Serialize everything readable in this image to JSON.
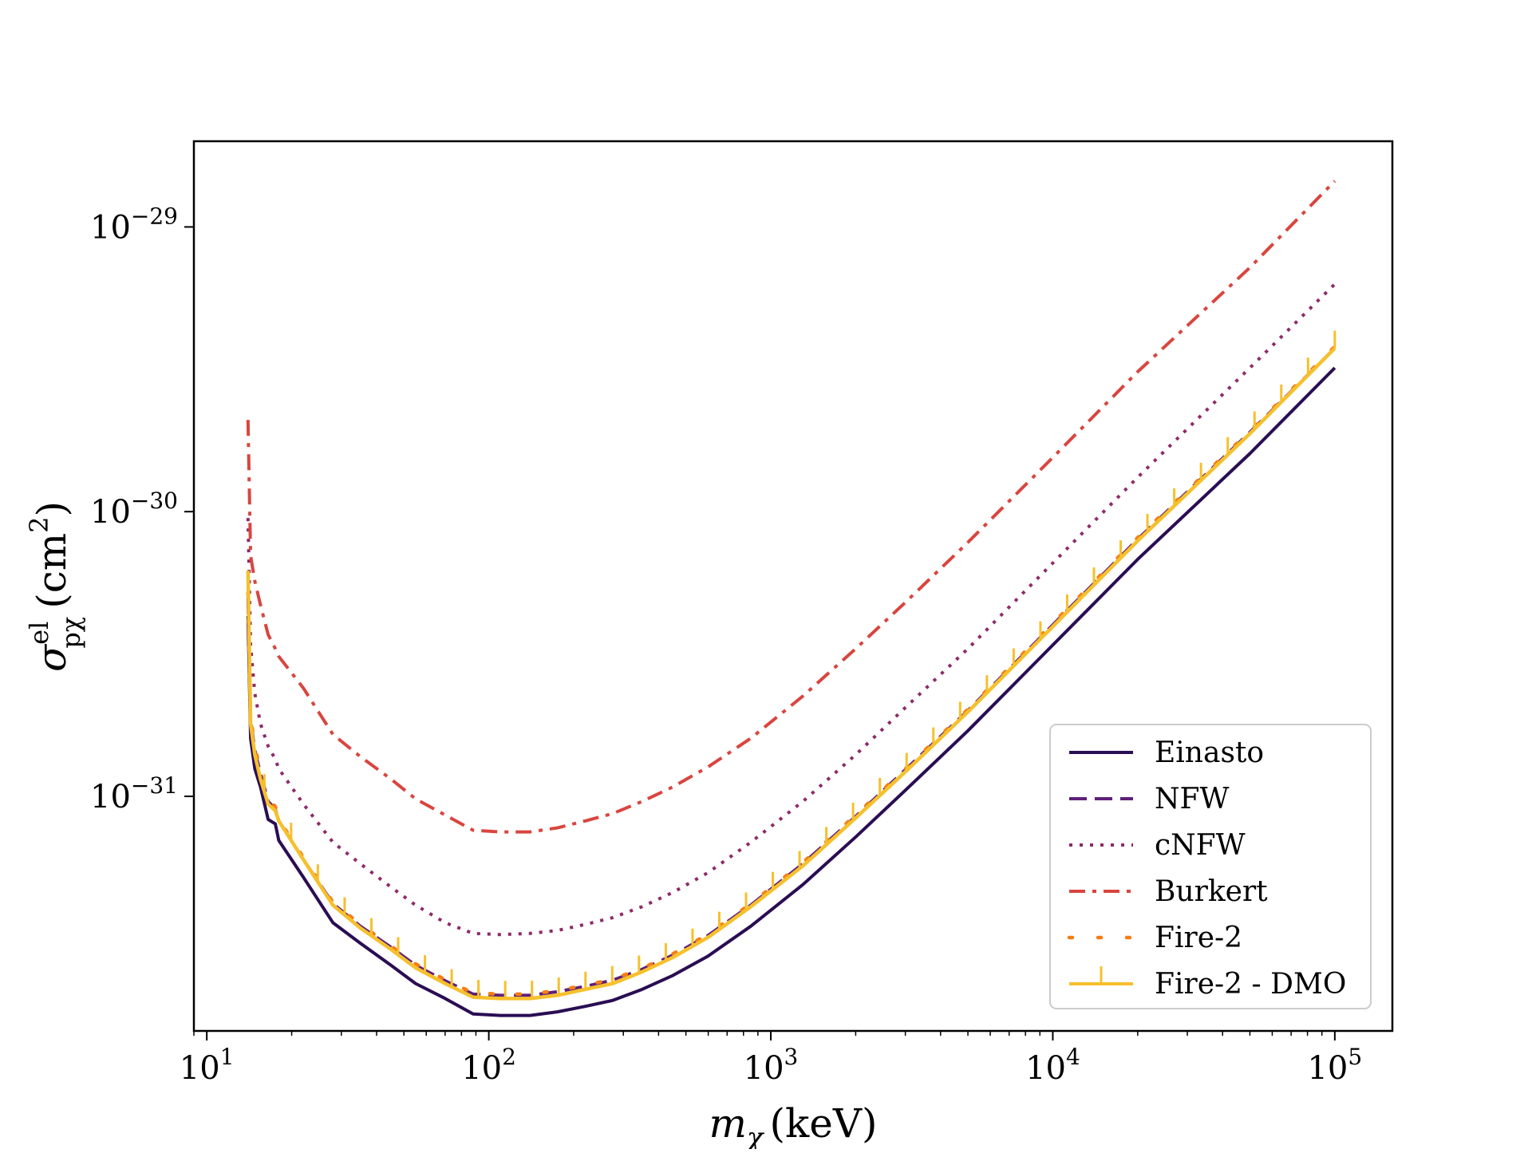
{
  "chart_data": {
    "type": "line",
    "title": "",
    "xlabel": "m",
    "xlabel_sub": "χ",
    "xlabel_unit": "(keV)",
    "ylabel": "σ",
    "ylabel_sup": "el",
    "ylabel_sub": "pχ",
    "ylabel_unit_open": "(cm",
    "ylabel_unit_exp": "2",
    "ylabel_unit_close": ")",
    "x_scale": "log",
    "y_scale": "log",
    "xlim": [
      9,
      160000
    ],
    "ylim": [
      1.5e-32,
      2e-29
    ],
    "grid": false,
    "legend_position": "lower right",
    "x_ticks": [
      {
        "value": 10,
        "base": "10",
        "exp": "1"
      },
      {
        "value": 100,
        "base": "10",
        "exp": "2"
      },
      {
        "value": 1000,
        "base": "10",
        "exp": "3"
      },
      {
        "value": 10000,
        "base": "10",
        "exp": "4"
      },
      {
        "value": 100000,
        "base": "10",
        "exp": "5"
      }
    ],
    "y_ticks": [
      {
        "value": 1e-31,
        "base": "10",
        "exp": "−31"
      },
      {
        "value": 1e-30,
        "base": "10",
        "exp": "−30"
      },
      {
        "value": 1e-29,
        "base": "10",
        "exp": "−29"
      }
    ],
    "series": [
      {
        "name": "Einasto",
        "color": "#2a0d53",
        "style": "solid",
        "x": [
          14,
          14.3,
          14.8,
          15.5,
          16.5,
          17.5,
          18,
          22,
          28,
          35,
          45,
          55,
          70,
          88,
          110,
          140,
          175,
          220,
          275,
          350,
          450,
          600,
          850,
          1300,
          2000,
          3000,
          5000,
          10000,
          20000,
          50000,
          100000
        ],
        "y": [
          4.3e-31,
          1.6e-31,
          1.25e-31,
          1.08e-31,
          8.3e-32,
          8e-32,
          7e-32,
          5.2e-32,
          3.6e-32,
          3.05e-32,
          2.55e-32,
          2.2e-32,
          1.95e-32,
          1.72e-32,
          1.7e-32,
          1.7e-32,
          1.75e-32,
          1.83e-32,
          1.92e-32,
          2.1e-32,
          2.35e-32,
          2.75e-32,
          3.5e-32,
          4.9e-32,
          7.2e-32,
          1.05e-31,
          1.7e-31,
          3.4e-31,
          6.8e-31,
          1.6e-30,
          3.2e-30
        ]
      },
      {
        "name": "NFW",
        "color": "#5e1f79",
        "style": "dashed",
        "x": [
          14,
          14.3,
          14.8,
          15.5,
          16.5,
          17.5,
          18,
          22,
          28,
          35,
          45,
          55,
          70,
          88,
          110,
          140,
          175,
          220,
          275,
          350,
          450,
          600,
          850,
          1300,
          2000,
          3000,
          5000,
          10000,
          20000,
          50000,
          100000
        ],
        "y": [
          5e-31,
          1.85e-31,
          1.45e-31,
          1.2e-31,
          9.6e-32,
          9e-32,
          8.2e-32,
          6e-32,
          4.2e-32,
          3.5e-32,
          2.95e-32,
          2.55e-32,
          2.25e-32,
          2.02e-32,
          2e-32,
          2e-32,
          2.06e-32,
          2.15e-32,
          2.26e-32,
          2.47e-32,
          2.77e-32,
          3.25e-32,
          4.15e-32,
          5.8e-32,
          8.5e-32,
          1.24e-31,
          2e-31,
          4e-31,
          8e-31,
          1.9e-30,
          3.75e-30
        ]
      },
      {
        "name": "cNFW",
        "color": "#8d2a68",
        "style": "dotted",
        "x": [
          14,
          14.3,
          14.8,
          15.5,
          16.5,
          17.5,
          18,
          22,
          28,
          35,
          45,
          55,
          70,
          88,
          110,
          140,
          175,
          220,
          275,
          350,
          450,
          600,
          850,
          1300,
          2000,
          3000,
          5000,
          10000,
          20000,
          50000,
          100000
        ],
        "y": [
          9.5e-31,
          3.4e-31,
          2.3e-31,
          1.8e-31,
          1.5e-31,
          1.35e-31,
          1.25e-31,
          9.4e-32,
          6.9e-32,
          5.8e-32,
          4.8e-32,
          4.15e-32,
          3.6e-32,
          3.3e-32,
          3.27e-32,
          3.3e-32,
          3.38e-32,
          3.55e-32,
          3.75e-32,
          4.1e-32,
          4.6e-32,
          5.4e-32,
          6.9e-32,
          9.6e-32,
          1.4e-31,
          2.05e-31,
          3.3e-31,
          6.6e-31,
          1.32e-30,
          3.2e-30,
          6.3e-30
        ]
      },
      {
        "name": "Burkert",
        "color": "#d9453f",
        "style": "dashdot",
        "x": [
          14,
          14.3,
          14.8,
          15.5,
          16.5,
          17.5,
          18,
          22,
          28,
          35,
          45,
          55,
          70,
          88,
          110,
          140,
          175,
          220,
          275,
          350,
          450,
          600,
          850,
          1300,
          2000,
          3000,
          5000,
          10000,
          20000,
          50000,
          100000
        ],
        "y": [
          2.1e-30,
          7e-31,
          5.7e-31,
          4.7e-31,
          3.7e-31,
          3.3e-31,
          3.1e-31,
          2.4e-31,
          1.65e-31,
          1.38e-31,
          1.15e-31,
          9.8e-32,
          8.6e-32,
          7.6e-32,
          7.5e-32,
          7.5e-32,
          7.75e-32,
          8.2e-32,
          8.7e-32,
          9.6e-32,
          1.08e-31,
          1.27e-31,
          1.6e-31,
          2.25e-31,
          3.3e-31,
          4.8e-31,
          7.8e-31,
          1.55e-30,
          3.1e-30,
          7.2e-30,
          1.45e-29
        ]
      },
      {
        "name": "Fire-2",
        "color": "#f57d15",
        "style": "dots",
        "x": [
          14,
          14.3,
          14.8,
          15.5,
          16.5,
          17.5,
          18,
          22,
          28,
          35,
          45,
          55,
          70,
          88,
          110,
          140,
          175,
          220,
          275,
          350,
          450,
          600,
          850,
          1300,
          2000,
          3000,
          5000,
          10000,
          20000,
          50000,
          100000
        ],
        "y": [
          5.2e-31,
          1.9e-31,
          1.5e-31,
          1.22e-31,
          9.8e-32,
          9.2e-32,
          8.3e-32,
          6.1e-32,
          4.25e-32,
          3.55e-32,
          2.98e-32,
          2.58e-32,
          2.27e-32,
          2.04e-32,
          2.02e-32,
          2.02e-32,
          2.08e-32,
          2.17e-32,
          2.28e-32,
          2.49e-32,
          2.8e-32,
          3.28e-32,
          4.2e-32,
          5.85e-32,
          8.6e-32,
          1.25e-31,
          2.02e-31,
          4.05e-31,
          8.1e-31,
          1.92e-30,
          3.8e-30
        ]
      },
      {
        "name": "Fire-2 - DMO",
        "color": "#f6c02c",
        "style": "solid-errorbars",
        "x": [
          14,
          14.3,
          14.8,
          15.5,
          16.5,
          17.5,
          18,
          22,
          28,
          35,
          45,
          55,
          70,
          88,
          110,
          140,
          175,
          220,
          275,
          350,
          450,
          600,
          850,
          1300,
          2000,
          3000,
          5000,
          10000,
          20000,
          50000,
          100000
        ],
        "y": [
          6.2e-31,
          1.8e-31,
          1.4e-31,
          1.15e-31,
          9.4e-32,
          8.9e-32,
          8.2e-32,
          6e-32,
          4.15e-32,
          3.45e-32,
          2.9e-32,
          2.5e-32,
          2.2e-32,
          1.97e-32,
          1.95e-32,
          1.95e-32,
          2e-32,
          2.1e-32,
          2.2e-32,
          2.42e-32,
          2.72e-32,
          3.2e-32,
          4.1e-32,
          5.7e-32,
          8.4e-32,
          1.22e-31,
          1.98e-31,
          3.95e-31,
          7.9e-31,
          1.88e-30,
          3.75e-30
        ]
      }
    ]
  }
}
